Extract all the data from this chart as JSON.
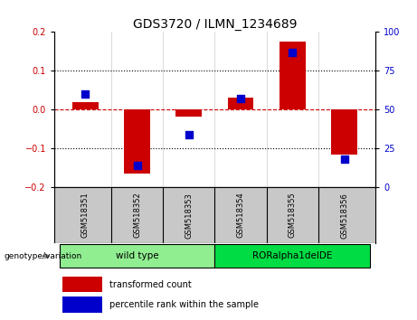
{
  "title": "GDS3720 / ILMN_1234689",
  "samples": [
    "GSM518351",
    "GSM518352",
    "GSM518353",
    "GSM518354",
    "GSM518355",
    "GSM518356"
  ],
  "red_bars": [
    0.02,
    -0.165,
    -0.018,
    0.03,
    0.175,
    -0.115
  ],
  "blue_dots_pct": [
    60,
    14,
    34,
    57,
    87,
    18
  ],
  "groups": [
    {
      "label": "wild type",
      "indices": [
        0,
        1,
        2
      ],
      "color": "#90EE90"
    },
    {
      "label": "RORalpha1delDE",
      "indices": [
        3,
        4,
        5
      ],
      "color": "#00DD44"
    }
  ],
  "group_label": "genotype/variation",
  "ylim_left": [
    -0.2,
    0.2
  ],
  "ylim_right": [
    0,
    100
  ],
  "yticks_left": [
    -0.2,
    -0.1,
    0.0,
    0.1,
    0.2
  ],
  "yticks_right": [
    0,
    25,
    50,
    75,
    100
  ],
  "red_color": "#CC0000",
  "blue_color": "#0000CC",
  "bar_width": 0.5,
  "dot_size": 40,
  "legend_red": "transformed count",
  "legend_blue": "percentile rank within the sample",
  "background_color": "#FFFFFF",
  "plot_bg": "#FFFFFF",
  "tick_label_color_left": "#CC0000",
  "tick_label_color_right": "#0000CC",
  "sample_bg": "#C8C8C8",
  "title_fontsize": 10,
  "tick_fontsize": 7,
  "sample_fontsize": 6,
  "legend_fontsize": 7
}
